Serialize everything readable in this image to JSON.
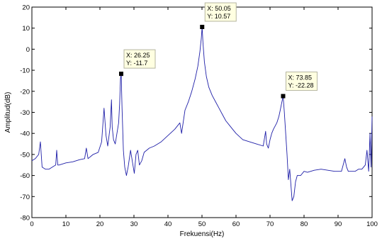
{
  "chart_data": {
    "type": "line",
    "title": "",
    "xlabel": "Frekuensi(Hz)",
    "ylabel": "Amplitud(dB)",
    "xlim": [
      0,
      100
    ],
    "ylim": [
      -80,
      20
    ],
    "xticks": [
      0,
      10,
      20,
      30,
      40,
      50,
      60,
      70,
      80,
      90,
      100
    ],
    "yticks": [
      20,
      10,
      0,
      -10,
      -20,
      -30,
      -40,
      -50,
      -60,
      -70,
      -80
    ],
    "grid": false,
    "series": [
      {
        "color": "#1f1fa8",
        "x": [
          0,
          1,
          2,
          2.5,
          3,
          4,
          5,
          6,
          7,
          7.3,
          7.6,
          8,
          10,
          12,
          14,
          15.5,
          16,
          16.5,
          18,
          19.5,
          20.5,
          21.2,
          21.8,
          22.3,
          23,
          23.4,
          23.6,
          24,
          24.5,
          25,
          25.5,
          25.8,
          26.05,
          26.25,
          26.5,
          26.9,
          27.3,
          27.8,
          28.3,
          29,
          29.5,
          30.1,
          30.6,
          31.1,
          31.6,
          32.3,
          33,
          34.5,
          36,
          38,
          40,
          42,
          43.5,
          44,
          45,
          46,
          47,
          48,
          48.8,
          49.4,
          49.8,
          50.05,
          50.3,
          50.7,
          51.3,
          52,
          53,
          54,
          55,
          56,
          57,
          58,
          59,
          60,
          62,
          64,
          66,
          68,
          68.7,
          69,
          69.5,
          70,
          70.5,
          71,
          72,
          72.6,
          73,
          73.5,
          73.85,
          74.2,
          74.6,
          75,
          75.4,
          75.8,
          76.5,
          77,
          77.5,
          78,
          79,
          80,
          81,
          83,
          85,
          87,
          89,
          91,
          92,
          92.5,
          93,
          94,
          95,
          96,
          97,
          98,
          98.5,
          99,
          99.4,
          99.7,
          100
        ],
        "y": [
          -53,
          -52,
          -50,
          -44,
          -56,
          -57,
          -57,
          -56,
          -55,
          -48,
          -55,
          -55,
          -54,
          -53.5,
          -52.5,
          -52,
          -47,
          -52,
          -50,
          -49,
          -44,
          -28,
          -41,
          -46,
          -37,
          -24,
          -37,
          -43,
          -45,
          -40,
          -35,
          -26,
          -14,
          -11.7,
          -28,
          -48,
          -56,
          -60,
          -56,
          -48,
          -53,
          -59,
          -50,
          -48,
          -55,
          -53,
          -49,
          -47,
          -46,
          -44,
          -41,
          -38,
          -35,
          -40,
          -29,
          -25,
          -20,
          -14,
          -8,
          -1,
          5,
          10.57,
          3,
          -6,
          -13,
          -18,
          -22,
          -25,
          -28,
          -31,
          -34,
          -36,
          -38,
          -40,
          -43,
          -44,
          -45,
          -46,
          -39,
          -45,
          -47,
          -43,
          -40,
          -38,
          -35,
          -32,
          -29,
          -25,
          -22.28,
          -30,
          -40,
          -50,
          -62,
          -57,
          -72,
          -70,
          -63,
          -60,
          -60,
          -58,
          -58.5,
          -57.5,
          -57,
          -57.5,
          -58,
          -58,
          -52,
          -56,
          -58,
          -58,
          -58,
          -57,
          -57,
          -55,
          -48,
          -58,
          -40,
          -56,
          -32
        ]
      }
    ],
    "datatips": [
      {
        "x": 26.25,
        "y": -11.7,
        "x_text": "X: 26.25",
        "y_text": "Y: -11.7"
      },
      {
        "x": 50.05,
        "y": 10.57,
        "x_text": "X: 50.05",
        "y_text": "Y: 10.57"
      },
      {
        "x": 73.85,
        "y": -22.28,
        "x_text": "X: 73.85",
        "y_text": "Y: -22.28"
      }
    ]
  }
}
